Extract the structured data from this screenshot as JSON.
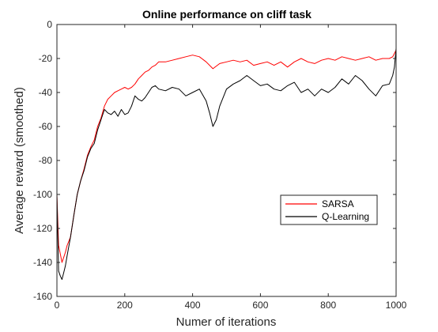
{
  "chart_data": {
    "type": "line",
    "title": "Online performance on cliff task",
    "xlabel": "Numer of iterations",
    "ylabel": "Average reward (smoothed)",
    "xlim": [
      0,
      1000
    ],
    "ylim": [
      -160,
      0
    ],
    "xticks": [
      0,
      200,
      400,
      600,
      800,
      1000
    ],
    "yticks": [
      0,
      -20,
      -40,
      -60,
      -80,
      -100,
      -120,
      -140,
      -160
    ],
    "grid": false,
    "legend_position": "center-right",
    "series": [
      {
        "name": "SARSA",
        "color": "#ff0000",
        "x": [
          0,
          5,
          10,
          15,
          20,
          25,
          30,
          40,
          50,
          60,
          70,
          80,
          90,
          100,
          110,
          120,
          130,
          140,
          150,
          160,
          170,
          180,
          190,
          200,
          210,
          220,
          230,
          240,
          250,
          260,
          270,
          280,
          290,
          300,
          320,
          340,
          360,
          380,
          400,
          420,
          440,
          460,
          480,
          500,
          520,
          540,
          560,
          580,
          600,
          620,
          640,
          660,
          680,
          700,
          720,
          740,
          760,
          780,
          800,
          820,
          840,
          860,
          880,
          900,
          920,
          940,
          960,
          980,
          990,
          995,
          1000
        ],
        "y": [
          -100,
          -130,
          -135,
          -140,
          -137,
          -134,
          -130,
          -125,
          -112,
          -100,
          -92,
          -85,
          -77,
          -72,
          -68,
          -60,
          -55,
          -48,
          -44,
          -42,
          -40,
          -39,
          -38,
          -37,
          -38,
          -37,
          -35,
          -32,
          -30,
          -28,
          -27,
          -25,
          -24,
          -22,
          -22,
          -21,
          -20,
          -19,
          -18,
          -19,
          -22,
          -26,
          -23,
          -22,
          -21,
          -22,
          -21,
          -24,
          -23,
          -22,
          -24,
          -22,
          -25,
          -22,
          -20,
          -22,
          -23,
          -21,
          -20,
          -21,
          -19,
          -20,
          -21,
          -20,
          -19,
          -21,
          -20,
          -20,
          -19,
          -17,
          -15
        ]
      },
      {
        "name": "Q-Learning",
        "color": "#000000",
        "x": [
          0,
          5,
          10,
          15,
          20,
          25,
          30,
          40,
          50,
          60,
          70,
          80,
          90,
          100,
          110,
          120,
          130,
          140,
          150,
          160,
          170,
          180,
          190,
          200,
          210,
          220,
          230,
          240,
          250,
          260,
          270,
          280,
          290,
          300,
          320,
          340,
          360,
          380,
          400,
          420,
          440,
          450,
          460,
          470,
          480,
          500,
          520,
          540,
          560,
          580,
          600,
          620,
          640,
          660,
          680,
          700,
          720,
          740,
          760,
          780,
          800,
          820,
          840,
          860,
          880,
          900,
          920,
          940,
          960,
          980,
          990,
          995,
          1000
        ],
        "y": [
          -100,
          -145,
          -148,
          -150,
          -146,
          -142,
          -136,
          -125,
          -112,
          -100,
          -92,
          -86,
          -78,
          -73,
          -70,
          -62,
          -56,
          -50,
          -52,
          -53,
          -51,
          -54,
          -50,
          -53,
          -52,
          -48,
          -42,
          -44,
          -45,
          -43,
          -40,
          -37,
          -36,
          -38,
          -39,
          -37,
          -38,
          -42,
          -40,
          -38,
          -45,
          -52,
          -60,
          -56,
          -48,
          -38,
          -35,
          -33,
          -30,
          -33,
          -36,
          -35,
          -38,
          -39,
          -36,
          -34,
          -40,
          -38,
          -42,
          -38,
          -40,
          -37,
          -32,
          -35,
          -30,
          -33,
          -38,
          -42,
          -36,
          -35,
          -30,
          -25,
          -14
        ]
      }
    ]
  }
}
